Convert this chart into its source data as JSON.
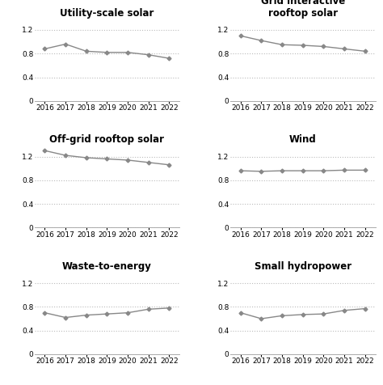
{
  "years": [
    2016,
    2017,
    2018,
    2019,
    2020,
    2021,
    2022
  ],
  "subplots": [
    {
      "title": "Utility-scale solar",
      "values": [
        0.88,
        0.96,
        0.84,
        0.82,
        0.82,
        0.78,
        0.72
      ]
    },
    {
      "title": "Grid interactive\nrooftop solar",
      "values": [
        1.1,
        1.02,
        0.95,
        0.94,
        0.92,
        0.88,
        0.84
      ]
    },
    {
      "title": "Off-grid rooftop solar",
      "values": [
        1.3,
        1.22,
        1.18,
        1.16,
        1.14,
        1.1,
        1.06
      ]
    },
    {
      "title": "Wind",
      "values": [
        0.96,
        0.95,
        0.96,
        0.96,
        0.96,
        0.97,
        0.97
      ]
    },
    {
      "title": "Waste-to-energy",
      "values": [
        0.7,
        0.62,
        0.66,
        0.68,
        0.7,
        0.76,
        0.78
      ]
    },
    {
      "title": "Small hydropower",
      "values": [
        0.7,
        0.6,
        0.65,
        0.67,
        0.68,
        0.74,
        0.77
      ]
    }
  ],
  "ylim": [
    0,
    1.38
  ],
  "yticks": [
    0,
    0.4,
    0.8,
    1.2
  ],
  "ytick_labels": [
    "0",
    "0.4",
    "0.8",
    "1.2"
  ],
  "line_color": "#888888",
  "marker": "D",
  "marker_size": 2.5,
  "line_width": 1.0,
  "background_color": "#ffffff",
  "grid_color": "#bbbbbb",
  "title_fontsize": 8.5,
  "tick_fontsize": 6.5
}
